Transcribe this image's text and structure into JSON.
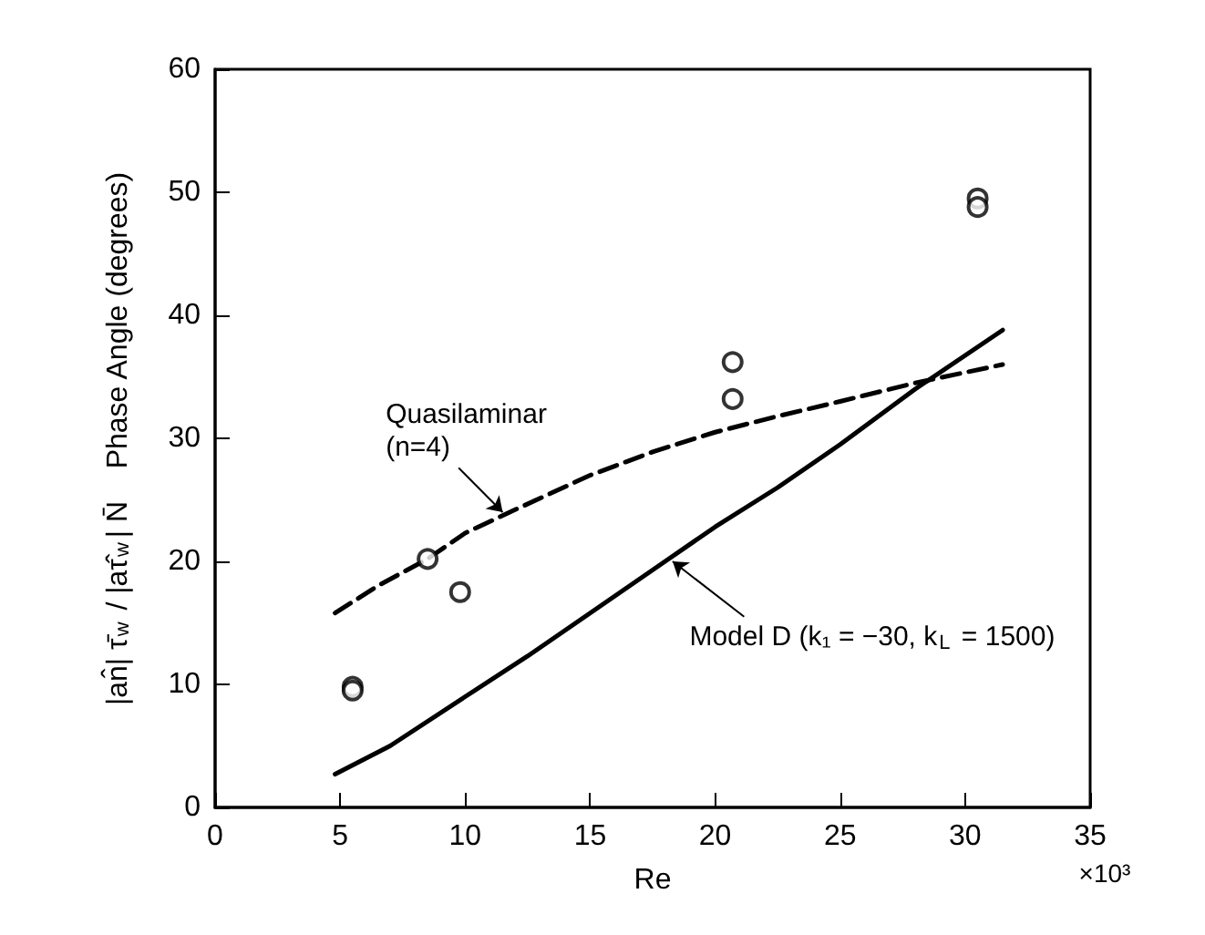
{
  "chart_data": {
    "type": "scatter",
    "xlabel": "Re",
    "ylabel": "|an̂| τ̄$_{w}$ / |aτ̂$_{w}$| N̄    Phase Angle (degrees)",
    "xlim": [
      0,
      35
    ],
    "xticks": [
      0,
      5,
      10,
      15,
      20,
      25,
      30,
      35
    ],
    "ylim": [
      0,
      60
    ],
    "yticks": [
      0,
      10,
      20,
      30,
      40,
      50,
      60
    ],
    "grid": false,
    "series": [
      {
        "color": "#000000",
        "marker": "circle",
        "x": [
          5.5,
          5.5,
          8.5,
          9.8,
          20.7,
          20.7,
          30.5,
          30.5
        ],
        "values": [
          9.8,
          9.5,
          20.2,
          17.5,
          36.2,
          33.2,
          49.5,
          48.8
        ]
      },
      {
        "type": "line",
        "color": "#000000",
        "line_style": "dashed",
        "marker": "none",
        "x": [
          4.8,
          6.5,
          8.5,
          10,
          12,
          15,
          17.5,
          20,
          22.5,
          25,
          28,
          31.5
        ],
        "values": [
          15.8,
          18,
          20.2,
          22.3,
          24.2,
          27,
          28.9,
          30.5,
          31.8,
          33,
          34.5,
          36
        ]
      },
      {
        "type": "line",
        "color": "#000000",
        "line_style": "solid",
        "marker": "none",
        "x": [
          4.8,
          7,
          10,
          12.5,
          15,
          18,
          20,
          22.5,
          25,
          28,
          31.5
        ],
        "values": [
          2.7,
          5,
          9,
          12.3,
          15.8,
          20,
          22.8,
          26,
          29.5,
          34,
          38.8
        ]
      }
    ],
    "annotations": [
      {
        "text": "Quasilaminar\n(n=4)",
        "x": 11.5,
        "y": 24
      },
      {
        "text": "Model D (k₁ = −30, k$_{L}$ = 1500)",
        "x": 18.3,
        "y": 20
      },
      "×10³"
    ]
  }
}
